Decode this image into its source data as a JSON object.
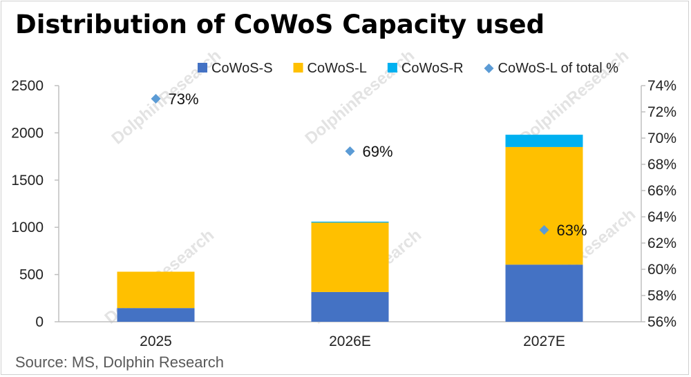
{
  "title": "Distribution of CoWoS Capacity used",
  "source": "Source: MS, Dolphin Research",
  "watermark": "DolphinResearch",
  "chart_data": {
    "type": "bar",
    "stacked": true,
    "categories": [
      "2025",
      "2026E",
      "2027E"
    ],
    "series": [
      {
        "name": "CoWoS-S",
        "values": [
          145,
          315,
          605
        ],
        "color": "#4472C4"
      },
      {
        "name": "CoWoS-L",
        "values": [
          385,
          735,
          1245
        ],
        "color": "#FFC000"
      },
      {
        "name": "CoWoS-R",
        "values": [
          0,
          10,
          130
        ],
        "color": "#00B0F0"
      }
    ],
    "secondary_series": {
      "name": "CoWoS-L of total %",
      "type": "scatter",
      "marker": "diamond",
      "color": "#5B9BD5",
      "values": [
        73,
        69,
        63
      ],
      "labels": [
        "73%",
        "69%",
        "63%"
      ]
    },
    "ylim": [
      0,
      2500
    ],
    "y_ticks": [
      "0",
      "500",
      "1000",
      "1500",
      "2000",
      "2500"
    ],
    "y2lim": [
      56,
      74
    ],
    "y2_ticks": [
      "56%",
      "58%",
      "60%",
      "62%",
      "64%",
      "66%",
      "68%",
      "70%",
      "72%",
      "74%"
    ],
    "legend": "top",
    "grid": false
  }
}
